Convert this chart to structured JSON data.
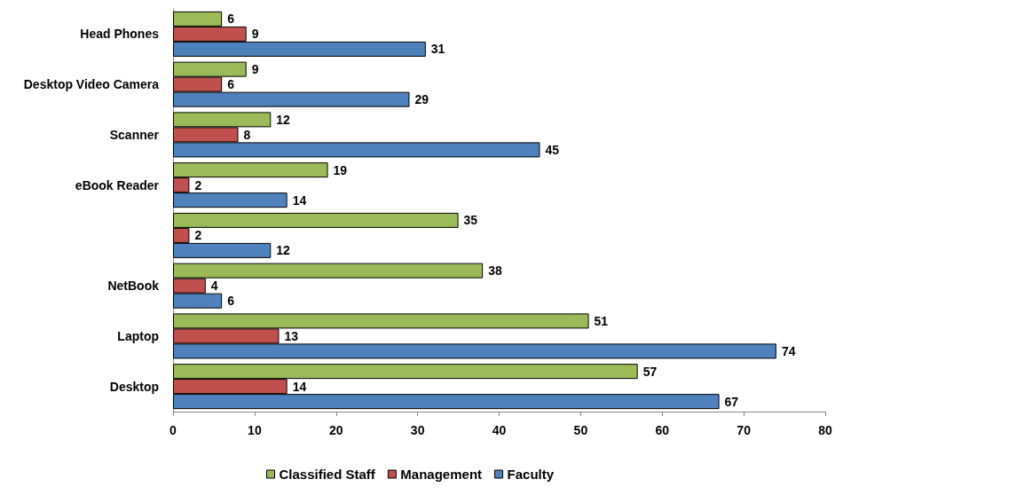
{
  "chart_data": {
    "type": "bar",
    "orientation": "horizontal",
    "categories": [
      "Head Phones",
      "Desktop Video Camera",
      "Scanner",
      "eBook Reader",
      null,
      "NetBook",
      "Laptop",
      "Desktop"
    ],
    "series": [
      {
        "name": "Classified Staff",
        "color": "#9bbb59",
        "values": [
          6,
          9,
          12,
          19,
          35,
          38,
          51,
          57
        ]
      },
      {
        "name": "Management",
        "color": "#c0504d",
        "values": [
          9,
          6,
          8,
          2,
          2,
          4,
          13,
          14
        ]
      },
      {
        "name": "Faculty",
        "color": "#4f81bd",
        "values": [
          31,
          29,
          45,
          14,
          12,
          6,
          74,
          67
        ]
      }
    ],
    "xlim": [
      0,
      80
    ],
    "xticks": [
      0,
      10,
      20,
      30,
      40,
      50,
      60,
      70,
      80
    ],
    "grid": false,
    "legend": "bottom",
    "data_labels": true
  }
}
